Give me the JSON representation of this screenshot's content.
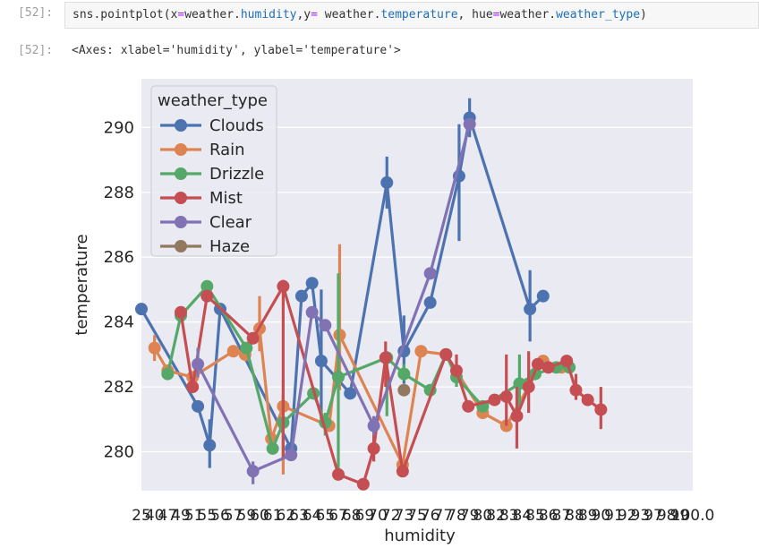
{
  "input_cell": {
    "prompt": "[52]:",
    "code_tokens": [
      {
        "t": "sns.pointplot(x",
        "c": "plain"
      },
      {
        "t": "=",
        "c": "kw"
      },
      {
        "t": "weather.",
        "c": "plain"
      },
      {
        "t": "humidity",
        "c": "attr"
      },
      {
        "t": ",y",
        "c": "plain"
      },
      {
        "t": "=",
        "c": "kw"
      },
      {
        "t": " weather.",
        "c": "plain"
      },
      {
        "t": "temperature",
        "c": "attr"
      },
      {
        "t": ", hue",
        "c": "plain"
      },
      {
        "t": "=",
        "c": "kw"
      },
      {
        "t": "weather.",
        "c": "plain"
      },
      {
        "t": "weather_type",
        "c": "attr"
      },
      {
        "t": ")",
        "c": "plain"
      }
    ]
  },
  "output_cell": {
    "prompt": "[52]:",
    "text": "<Axes: xlabel='humidity', ylabel='temperature'>"
  },
  "colors": {
    "panel_bg": "#eaeaf2",
    "grid": "#ffffff",
    "tick_text": "#262626"
  },
  "chart_data": {
    "type": "line",
    "xlabel": "humidity",
    "ylabel": "temperature",
    "ylim": [
      278.8,
      291.5
    ],
    "yticks": [
      280,
      282,
      284,
      286,
      288,
      290
    ],
    "x_tick_labels": [
      "25",
      "40",
      "47",
      "49",
      "51",
      "55",
      "56",
      "57",
      "59",
      "60",
      "61",
      "62",
      "63",
      "64",
      "65",
      "67",
      "68",
      "69",
      "70",
      "72",
      "73",
      "75",
      "76",
      "77",
      "78",
      "79",
      "80",
      "82",
      "83",
      "84",
      "85",
      "86",
      "87",
      "88",
      "89",
      "90",
      "91",
      "92",
      "93",
      "97",
      "98",
      "99",
      "100.0"
    ],
    "grid": true,
    "legend": {
      "title": "weather_type",
      "placement": "upper-left"
    },
    "series": [
      {
        "name": "Clouds",
        "color": "#4c72b0",
        "points": [
          {
            "x": 0,
            "y": 284.4
          },
          {
            "x": 4.3,
            "y": 281.4,
            "err": [
              281.4,
              281.4
            ]
          },
          {
            "x": 5.2,
            "y": 280.2,
            "err": [
              279.5,
              281.0
            ]
          },
          {
            "x": 6.0,
            "y": 284.4,
            "err": [
              284.4,
              284.4
            ]
          },
          {
            "x": 11.4,
            "y": 280.1
          },
          {
            "x": 12.2,
            "y": 284.8
          },
          {
            "x": 13.0,
            "y": 285.2
          },
          {
            "x": 13.7,
            "y": 282.8,
            "err": [
              281.0,
              285.0
            ]
          },
          {
            "x": 15.9,
            "y": 281.8
          },
          {
            "x": 18.7,
            "y": 288.3,
            "err": [
              287.5,
              289.1
            ]
          },
          {
            "x": 20.0,
            "y": 283.1,
            "err": [
              282.1,
              284.2
            ]
          },
          {
            "x": 22.0,
            "y": 284.6
          },
          {
            "x": 24.2,
            "y": 288.5,
            "err": [
              286.5,
              290.1
            ]
          },
          {
            "x": 25.0,
            "y": 290.3,
            "err": [
              289.7,
              290.9
            ]
          },
          {
            "x": 29.6,
            "y": 284.4,
            "err": [
              283.4,
              285.6
            ]
          },
          {
            "x": 30.6,
            "y": 284.8
          }
        ]
      },
      {
        "name": "Rain",
        "color": "#dd8452",
        "points": [
          {
            "x": 1.0,
            "y": 283.2,
            "err": [
              282.8,
              283.6
            ]
          },
          {
            "x": 2.0,
            "y": 282.5
          },
          {
            "x": 3.9,
            "y": 282.3
          },
          {
            "x": 7.0,
            "y": 283.1
          },
          {
            "x": 7.9,
            "y": 283.0,
            "err": [
              282.8,
              283.3
            ]
          },
          {
            "x": 9.0,
            "y": 283.8,
            "err": [
              283.1,
              284.8
            ]
          },
          {
            "x": 9.9,
            "y": 280.4
          },
          {
            "x": 10.8,
            "y": 281.4,
            "err": [
              279.3,
              282.2
            ]
          },
          {
            "x": 14.3,
            "y": 280.8
          },
          {
            "x": 15.1,
            "y": 283.6,
            "err": [
              281.9,
              286.4
            ]
          },
          {
            "x": 19.9,
            "y": 279.6
          },
          {
            "x": 21.3,
            "y": 283.1
          },
          {
            "x": 23.2,
            "y": 283.0
          },
          {
            "x": 26.0,
            "y": 281.2
          },
          {
            "x": 27.8,
            "y": 280.8
          },
          {
            "x": 30.6,
            "y": 282.8
          },
          {
            "x": 32.0,
            "y": 282.6
          }
        ]
      },
      {
        "name": "Drizzle",
        "color": "#55a868",
        "points": [
          {
            "x": 2.0,
            "y": 282.4
          },
          {
            "x": 3.0,
            "y": 284.2
          },
          {
            "x": 5.0,
            "y": 285.1
          },
          {
            "x": 8.0,
            "y": 283.2
          },
          {
            "x": 10.0,
            "y": 280.1
          },
          {
            "x": 10.8,
            "y": 280.9,
            "err": [
              279.8,
              281.8
            ]
          },
          {
            "x": 13.1,
            "y": 281.8
          },
          {
            "x": 14.0,
            "y": 280.9,
            "err": [
              280.5,
              281.2
            ]
          },
          {
            "x": 15.0,
            "y": 282.3,
            "err": [
              279.2,
              285.5
            ]
          },
          {
            "x": 18.7,
            "y": 282.9,
            "err": [
              281.1,
              283.1
            ]
          },
          {
            "x": 20.0,
            "y": 282.4,
            "err": [
              282.2,
              282.7
            ]
          },
          {
            "x": 22.0,
            "y": 281.9
          },
          {
            "x": 23.2,
            "y": 283.0
          },
          {
            "x": 24.0,
            "y": 282.3,
            "err": [
              282.0,
              282.6
            ]
          },
          {
            "x": 26.0,
            "y": 281.4
          },
          {
            "x": 28.8,
            "y": 282.1,
            "err": [
              281.3,
              283.0
            ]
          },
          {
            "x": 30.0,
            "y": 282.4
          },
          {
            "x": 31.6,
            "y": 282.6
          },
          {
            "x": 32.6,
            "y": 282.6
          }
        ]
      },
      {
        "name": "Mist",
        "color": "#c44e52",
        "points": [
          {
            "x": 3.0,
            "y": 284.3
          },
          {
            "x": 3.9,
            "y": 282.0
          },
          {
            "x": 5.0,
            "y": 284.8
          },
          {
            "x": 8.5,
            "y": 283.5
          },
          {
            "x": 10.8,
            "y": 285.1,
            "err": [
              279.8,
              285.3
            ]
          },
          {
            "x": 15.0,
            "y": 279.3
          },
          {
            "x": 16.9,
            "y": 279.0
          },
          {
            "x": 17.7,
            "y": 280.1,
            "err": [
              279.7,
              280.6
            ]
          },
          {
            "x": 18.6,
            "y": 282.9,
            "err": [
              282.0,
              283.4
            ]
          },
          {
            "x": 19.9,
            "y": 279.4
          },
          {
            "x": 23.2,
            "y": 283.0
          },
          {
            "x": 24.0,
            "y": 282.5,
            "err": [
              282.3,
              283.0
            ]
          },
          {
            "x": 24.9,
            "y": 281.4
          },
          {
            "x": 26.9,
            "y": 281.6
          },
          {
            "x": 27.8,
            "y": 281.7,
            "err": [
              280.8,
              283.0
            ]
          },
          {
            "x": 28.6,
            "y": 281.1,
            "err": [
              280.1,
              282.0
            ]
          },
          {
            "x": 29.5,
            "y": 282.0,
            "err": [
              281.2,
              283.1
            ]
          },
          {
            "x": 30.2,
            "y": 282.7
          },
          {
            "x": 31.0,
            "y": 282.6
          },
          {
            "x": 32.4,
            "y": 282.8
          },
          {
            "x": 33.1,
            "y": 281.9,
            "err": [
              281.6,
              282.4
            ]
          },
          {
            "x": 34.0,
            "y": 281.6
          },
          {
            "x": 35.0,
            "y": 281.3,
            "err": [
              280.7,
              282.0
            ]
          }
        ]
      },
      {
        "name": "Clear",
        "color": "#8172b3",
        "points": [
          {
            "x": 4.3,
            "y": 282.7,
            "err": [
              282.3,
              283.2
            ]
          },
          {
            "x": 8.5,
            "y": 279.4,
            "err": [
              279.0,
              279.7
            ]
          },
          {
            "x": 11.4,
            "y": 279.9
          },
          {
            "x": 13.0,
            "y": 284.3
          },
          {
            "x": 14.0,
            "y": 283.9
          },
          {
            "x": 17.7,
            "y": 280.8,
            "err": [
              280.5,
              281.1
            ]
          },
          {
            "x": 22.0,
            "y": 285.5
          },
          {
            "x": 25.0,
            "y": 290.1
          }
        ]
      },
      {
        "name": "Haze",
        "color": "#937860",
        "points": [
          {
            "x": 20.0,
            "y": 281.9
          }
        ]
      }
    ]
  }
}
